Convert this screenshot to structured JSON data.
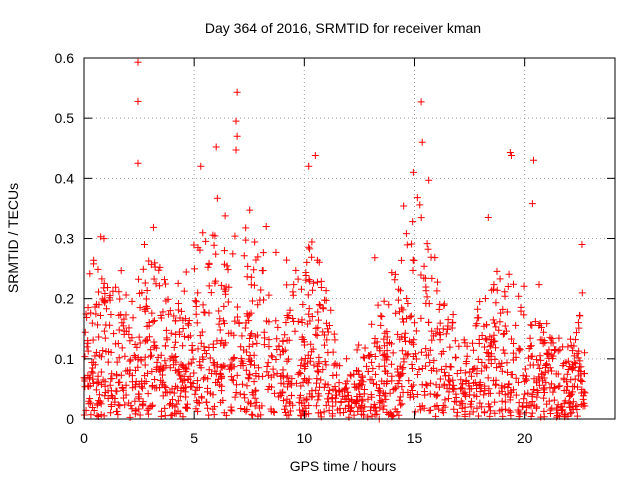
{
  "chart_data": {
    "type": "scatter",
    "title": "Day 364 of 2016, SRMTID for receiver kman",
    "xlabel": "GPS time / hours",
    "ylabel": "SRMTID / TECUs",
    "xlim": [
      0,
      24.1
    ],
    "ylim": [
      0,
      0.6
    ],
    "x_ticks": [
      0,
      5,
      10,
      15,
      20
    ],
    "x_tick_labels": [
      "0",
      "5",
      "10",
      "15",
      "20"
    ],
    "y_ticks": [
      0,
      0.1,
      0.2,
      0.3,
      0.4,
      0.5,
      0.6
    ],
    "y_tick_labels": [
      "0",
      "0.1",
      "0.2",
      "0.3",
      "0.4",
      "0.5",
      "0.6"
    ],
    "grid": true,
    "marker": "+",
    "color": "#ff0000",
    "notable_points": [
      {
        "x": 2.45,
        "y": 0.593
      },
      {
        "x": 2.45,
        "y": 0.528
      },
      {
        "x": 2.45,
        "y": 0.425
      },
      {
        "x": 6.95,
        "y": 0.543
      },
      {
        "x": 6.9,
        "y": 0.495
      },
      {
        "x": 6.95,
        "y": 0.47
      },
      {
        "x": 6.9,
        "y": 0.447
      },
      {
        "x": 6.0,
        "y": 0.452
      },
      {
        "x": 10.5,
        "y": 0.438
      },
      {
        "x": 10.2,
        "y": 0.42
      },
      {
        "x": 15.3,
        "y": 0.527
      },
      {
        "x": 15.35,
        "y": 0.46
      },
      {
        "x": 19.35,
        "y": 0.443
      },
      {
        "x": 19.4,
        "y": 0.438
      },
      {
        "x": 20.4,
        "y": 0.43
      },
      {
        "x": 20.35,
        "y": 0.358
      },
      {
        "x": 5.3,
        "y": 0.42
      },
      {
        "x": 14.95,
        "y": 0.41
      },
      {
        "x": 18.35,
        "y": 0.335
      },
      {
        "x": 13.2,
        "y": 0.268
      },
      {
        "x": 22.6,
        "y": 0.29
      },
      {
        "x": 13.4,
        "y": 0.0
      }
    ],
    "activity_profile": [
      {
        "x": 0.0,
        "y": 0.07
      },
      {
        "x": 0.5,
        "y": 0.09
      },
      {
        "x": 1.0,
        "y": 0.1
      },
      {
        "x": 1.5,
        "y": 0.09
      },
      {
        "x": 2.0,
        "y": 0.08
      },
      {
        "x": 2.5,
        "y": 0.1
      },
      {
        "x": 3.0,
        "y": 0.11
      },
      {
        "x": 3.5,
        "y": 0.1
      },
      {
        "x": 4.0,
        "y": 0.09
      },
      {
        "x": 4.5,
        "y": 0.1
      },
      {
        "x": 5.0,
        "y": 0.13
      },
      {
        "x": 5.5,
        "y": 0.12
      },
      {
        "x": 6.0,
        "y": 0.12
      },
      {
        "x": 6.5,
        "y": 0.11
      },
      {
        "x": 7.0,
        "y": 0.13
      },
      {
        "x": 7.5,
        "y": 0.12
      },
      {
        "x": 8.0,
        "y": 0.12
      },
      {
        "x": 8.5,
        "y": 0.09
      },
      {
        "x": 9.0,
        "y": 0.09
      },
      {
        "x": 9.5,
        "y": 0.1
      },
      {
        "x": 10.0,
        "y": 0.11
      },
      {
        "x": 10.5,
        "y": 0.13
      },
      {
        "x": 11.0,
        "y": 0.1
      },
      {
        "x": 11.5,
        "y": 0.05
      },
      {
        "x": 12.0,
        "y": 0.04
      },
      {
        "x": 12.5,
        "y": 0.05
      },
      {
        "x": 13.0,
        "y": 0.07
      },
      {
        "x": 13.5,
        "y": 0.08
      },
      {
        "x": 14.0,
        "y": 0.1
      },
      {
        "x": 14.5,
        "y": 0.12
      },
      {
        "x": 15.0,
        "y": 0.15
      },
      {
        "x": 15.5,
        "y": 0.14
      },
      {
        "x": 16.0,
        "y": 0.12
      },
      {
        "x": 16.5,
        "y": 0.09
      },
      {
        "x": 17.0,
        "y": 0.06
      },
      {
        "x": 17.5,
        "y": 0.06
      },
      {
        "x": 18.0,
        "y": 0.08
      },
      {
        "x": 18.5,
        "y": 0.1
      },
      {
        "x": 19.0,
        "y": 0.1
      },
      {
        "x": 19.5,
        "y": 0.09
      },
      {
        "x": 20.0,
        "y": 0.08
      },
      {
        "x": 20.5,
        "y": 0.08
      },
      {
        "x": 21.0,
        "y": 0.07
      },
      {
        "x": 21.5,
        "y": 0.06
      },
      {
        "x": 22.0,
        "y": 0.07
      },
      {
        "x": 22.5,
        "y": 0.08
      },
      {
        "x": 22.75,
        "y": 0.08
      }
    ],
    "generated_points": 1700,
    "x_data_end": 22.75
  }
}
